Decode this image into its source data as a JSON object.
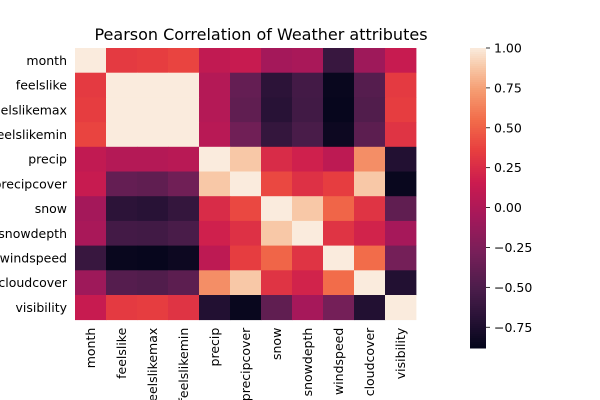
{
  "chart_data": {
    "type": "heatmap",
    "title": "Pearson Correlation of Weather attributes",
    "row_labels": [
      "month",
      "feelslike",
      "feelslikemax",
      "feelslikemin",
      "precip",
      "precipcover",
      "snow",
      "snowdepth",
      "windspeed",
      "cloudcover",
      "visibility"
    ],
    "col_labels": [
      "month",
      "feelslike",
      "feelslikemax",
      "feelslikemin",
      "precip",
      "precipcover",
      "snow",
      "snowdepth",
      "windspeed",
      "cloudcover",
      "visibility"
    ],
    "values": [
      [
        1.0,
        0.33,
        0.35,
        0.38,
        0.1,
        0.13,
        -0.06,
        -0.03,
        -0.61,
        -0.09,
        0.13
      ],
      [
        0.33,
        1.0,
        1.0,
        1.0,
        0.03,
        -0.38,
        -0.67,
        -0.55,
        -0.85,
        -0.46,
        0.33
      ],
      [
        0.35,
        1.0,
        1.0,
        1.0,
        0.03,
        -0.4,
        -0.69,
        -0.56,
        -0.86,
        -0.48,
        0.35
      ],
      [
        0.38,
        1.0,
        1.0,
        1.0,
        0.05,
        -0.32,
        -0.63,
        -0.52,
        -0.83,
        -0.42,
        0.3
      ],
      [
        0.1,
        0.03,
        0.03,
        0.05,
        1.0,
        0.88,
        0.25,
        0.18,
        0.08,
        0.68,
        -0.72
      ],
      [
        0.13,
        -0.38,
        -0.4,
        -0.32,
        0.88,
        1.0,
        0.4,
        0.28,
        0.35,
        0.88,
        -0.85
      ],
      [
        -0.06,
        -0.67,
        -0.69,
        -0.63,
        0.25,
        0.4,
        1.0,
        0.88,
        0.52,
        0.3,
        -0.4
      ],
      [
        -0.03,
        -0.55,
        -0.56,
        -0.52,
        0.18,
        0.28,
        0.88,
        1.0,
        0.3,
        0.2,
        -0.05
      ],
      [
        -0.61,
        -0.85,
        -0.86,
        -0.83,
        0.08,
        0.35,
        0.52,
        0.3,
        1.0,
        0.55,
        -0.3
      ],
      [
        -0.09,
        -0.46,
        -0.48,
        -0.42,
        0.68,
        0.88,
        0.3,
        0.2,
        0.55,
        1.0,
        -0.72
      ],
      [
        0.13,
        0.33,
        0.35,
        0.3,
        -0.72,
        -0.85,
        -0.4,
        -0.05,
        -0.3,
        -0.72,
        1.0
      ]
    ],
    "vmin": -0.88,
    "vmax": 1.0,
    "colorbar_ticks": [
      1.0,
      0.75,
      0.5,
      0.25,
      0.0,
      -0.25,
      -0.5,
      -0.75
    ],
    "colorbar_tick_labels": [
      "1.00",
      "0.75",
      "0.50",
      "0.25",
      "0.00",
      "−0.25",
      "−0.50",
      "−0.75"
    ],
    "colormap": "rocket",
    "grid": false
  }
}
